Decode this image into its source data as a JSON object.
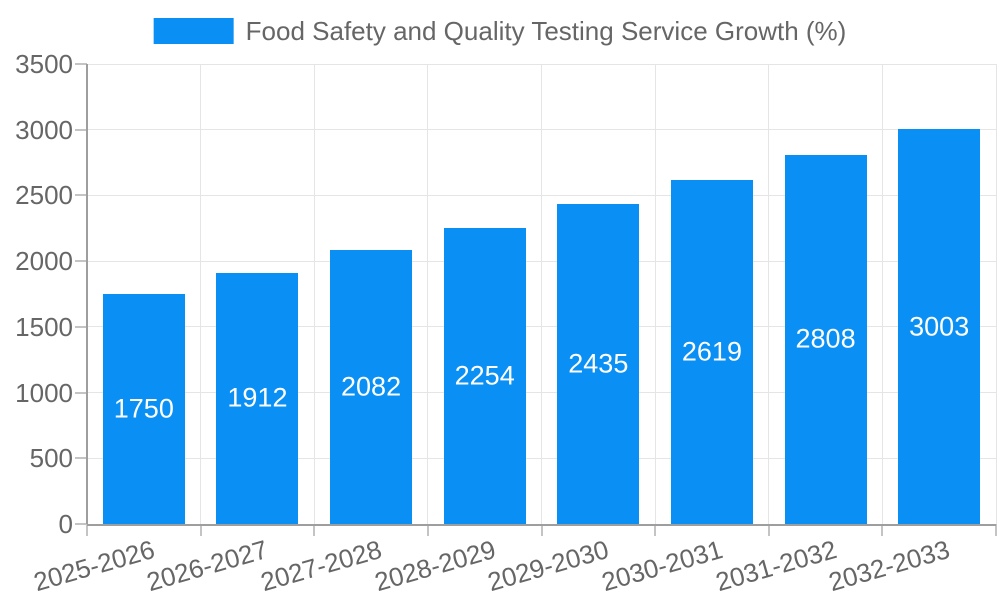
{
  "chart_data": {
    "type": "bar",
    "legend_label": "Food Safety and Quality Testing Service Growth (%)",
    "legend_position": "top",
    "categories": [
      "2025-2026",
      "2026-2027",
      "2027-2028",
      "2028-2029",
      "2029-2030",
      "2030-2031",
      "2031-2032",
      "2032-2033"
    ],
    "values": [
      1750,
      1912,
      2082,
      2254,
      2435,
      2619,
      2808,
      3003
    ],
    "value_labels": [
      "1750",
      "1912",
      "2082",
      "2254",
      "2435",
      "2619",
      "2808",
      "3003"
    ],
    "yticks": [
      0,
      500,
      1000,
      1500,
      2000,
      2500,
      3000,
      3500
    ],
    "ylim": [
      0,
      3500
    ],
    "xlabel": "",
    "ylabel": "",
    "grid": true,
    "colors": {
      "bar": "#0a90f5",
      "bar_value_text": "#ffffff",
      "axis_text": "#666666",
      "gridline": "#e5e5e5",
      "axis_border": "#9e9e9e",
      "tick_mark": "#c4c4c4",
      "background": "#ffffff"
    }
  }
}
